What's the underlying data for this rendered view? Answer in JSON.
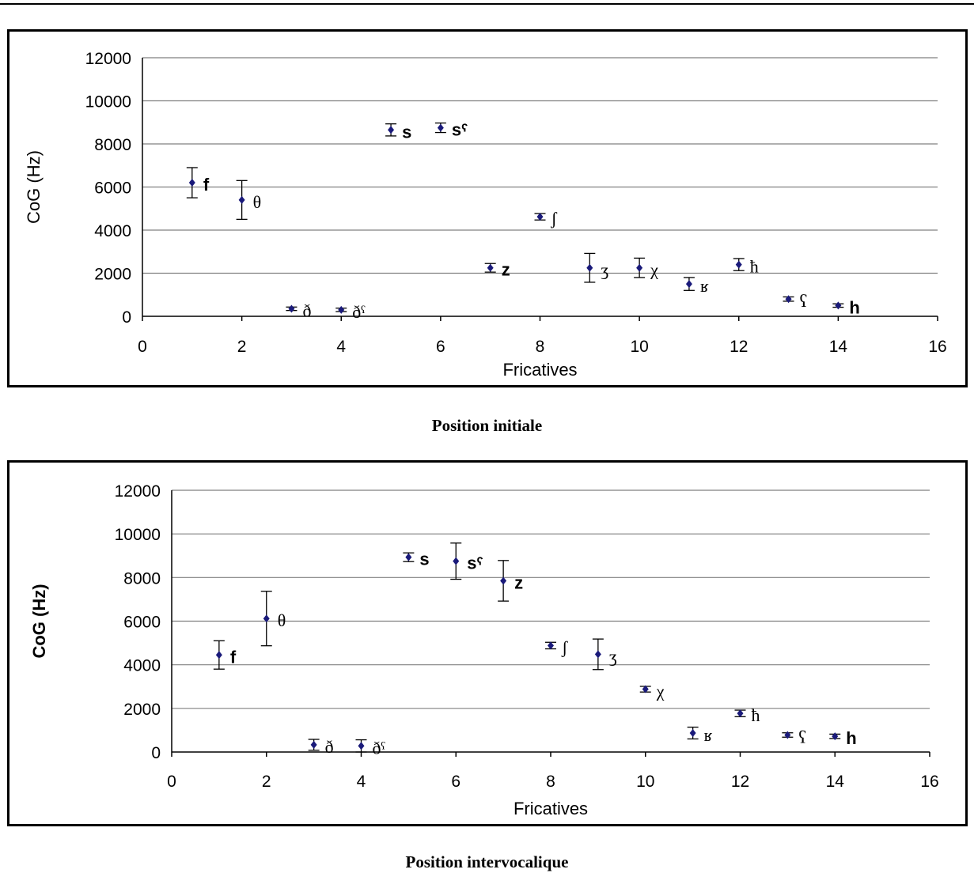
{
  "colors": {
    "marker": "#1a1a7a",
    "grid": "#808080",
    "frame": "#000000"
  },
  "chart_data": [
    {
      "type": "scatter",
      "caption": "Position initiale",
      "xlabel": "Fricatives",
      "ylabel": "CoG (Hz)",
      "xlim": [
        0,
        16
      ],
      "ylim": [
        0,
        12000
      ],
      "xticks": [
        "0",
        "2",
        "4",
        "6",
        "8",
        "10",
        "12",
        "14",
        "16"
      ],
      "yticks": [
        "0",
        "2000",
        "4000",
        "6000",
        "8000",
        "10000",
        "12000"
      ],
      "grid": "horizontal",
      "points": [
        {
          "x": 1,
          "y": 6200,
          "err": 700,
          "label": "f"
        },
        {
          "x": 2,
          "y": 5400,
          "err": 900,
          "label": "θ"
        },
        {
          "x": 3,
          "y": 350,
          "err": 80,
          "label": "ð"
        },
        {
          "x": 4,
          "y": 300,
          "err": 80,
          "label": "ðˤ"
        },
        {
          "x": 5,
          "y": 8650,
          "err": 280,
          "label": "s"
        },
        {
          "x": 6,
          "y": 8750,
          "err": 220,
          "label": "sˤ"
        },
        {
          "x": 7,
          "y": 2250,
          "err": 200,
          "label": "z"
        },
        {
          "x": 8,
          "y": 4620,
          "err": 150,
          "label": "ʃ"
        },
        {
          "x": 9,
          "y": 2250,
          "err": 670,
          "label": "ʒ"
        },
        {
          "x": 10,
          "y": 2250,
          "err": 450,
          "label": "χ"
        },
        {
          "x": 11,
          "y": 1500,
          "err": 300,
          "label": "ʁ"
        },
        {
          "x": 12,
          "y": 2400,
          "err": 280,
          "label": "ħ"
        },
        {
          "x": 13,
          "y": 800,
          "err": 100,
          "label": "ʕ"
        },
        {
          "x": 14,
          "y": 500,
          "err": 80,
          "label": "h"
        }
      ]
    },
    {
      "type": "scatter",
      "caption": "Position intervocalique",
      "xlabel": "Fricatives",
      "ylabel": "CoG (Hz)",
      "xlim": [
        0,
        16
      ],
      "ylim": [
        0,
        12000
      ],
      "xticks": [
        "0",
        "2",
        "4",
        "6",
        "8",
        "10",
        "12",
        "14",
        "16"
      ],
      "yticks": [
        "0",
        "2000",
        "4000",
        "6000",
        "8000",
        "10000",
        "12000"
      ],
      "grid": "horizontal",
      "points": [
        {
          "x": 1,
          "y": 4450,
          "err": 650,
          "label": "f"
        },
        {
          "x": 2,
          "y": 6120,
          "err": 1250,
          "label": "θ"
        },
        {
          "x": 3,
          "y": 330,
          "err": 250,
          "label": "ð"
        },
        {
          "x": 4,
          "y": 280,
          "err": 280,
          "label": "ðˤ"
        },
        {
          "x": 5,
          "y": 8930,
          "err": 200,
          "label": "s"
        },
        {
          "x": 6,
          "y": 8750,
          "err": 830,
          "label": "sˤ"
        },
        {
          "x": 7,
          "y": 7850,
          "err": 930,
          "label": "z"
        },
        {
          "x": 8,
          "y": 4880,
          "err": 150,
          "label": "ʃ"
        },
        {
          "x": 9,
          "y": 4480,
          "err": 700,
          "label": "ʒ"
        },
        {
          "x": 10,
          "y": 2880,
          "err": 130,
          "label": "χ"
        },
        {
          "x": 11,
          "y": 870,
          "err": 270,
          "label": "ʁ"
        },
        {
          "x": 12,
          "y": 1770,
          "err": 150,
          "label": "ħ"
        },
        {
          "x": 13,
          "y": 780,
          "err": 100,
          "label": "ʕ"
        },
        {
          "x": 14,
          "y": 720,
          "err": 100,
          "label": "h"
        }
      ]
    }
  ]
}
